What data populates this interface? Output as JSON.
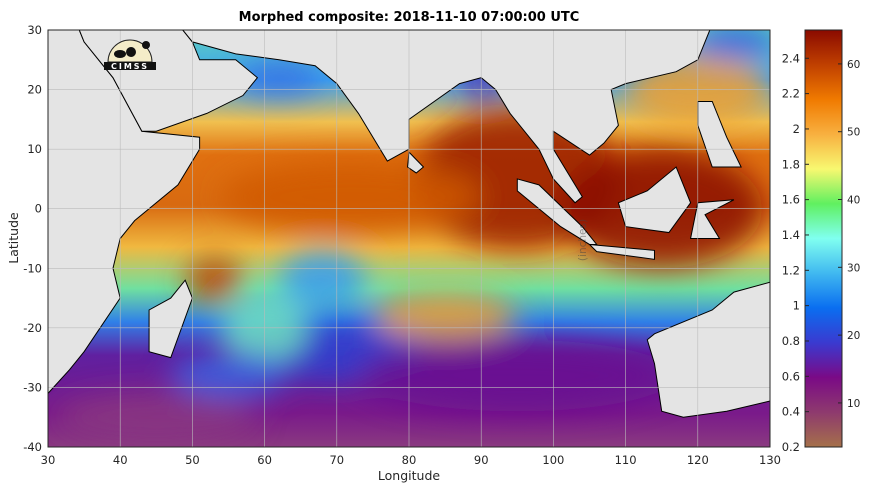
{
  "title": "Morphed composite: 2018-11-10 07:00:00 UTC",
  "logo_text": "CIMSS",
  "chart_data": {
    "type": "heatmap",
    "title": "Morphed composite: 2018-11-10 07:00:00 UTC",
    "xlabel": "Longitude",
    "ylabel": "Latitude",
    "xlim": [
      30,
      130
    ],
    "ylim": [
      -40,
      30
    ],
    "xticks": [
      "30",
      "40",
      "50",
      "60",
      "70",
      "80",
      "90",
      "100",
      "110",
      "120",
      "130"
    ],
    "yticks": [
      "30",
      "20",
      "10",
      "0",
      "-10",
      "-20",
      "-30",
      "-40"
    ],
    "grid": true,
    "colorbar": {
      "left_label": "(inches)",
      "left_range": [
        0.2,
        2.56
      ],
      "left_ticks": [
        "0.2",
        "0.4",
        "0.6",
        "0.8",
        "1",
        "1.2",
        "1.4",
        "1.6",
        "1.8",
        "2",
        "2.2",
        "2.4"
      ],
      "right_ticks": [
        "10",
        "20",
        "30",
        "40",
        "50",
        "60"
      ],
      "right_range": [
        3.5,
        65
      ],
      "colors": [
        "#a5704a",
        "#8e3a6e",
        "#7a0a86",
        "#3a3ad0",
        "#0a6ef0",
        "#40b8f0",
        "#80fff0",
        "#60f060",
        "#f8f870",
        "#f8b040",
        "#f07a00",
        "#c04000",
        "#8a0a00"
      ]
    }
  }
}
